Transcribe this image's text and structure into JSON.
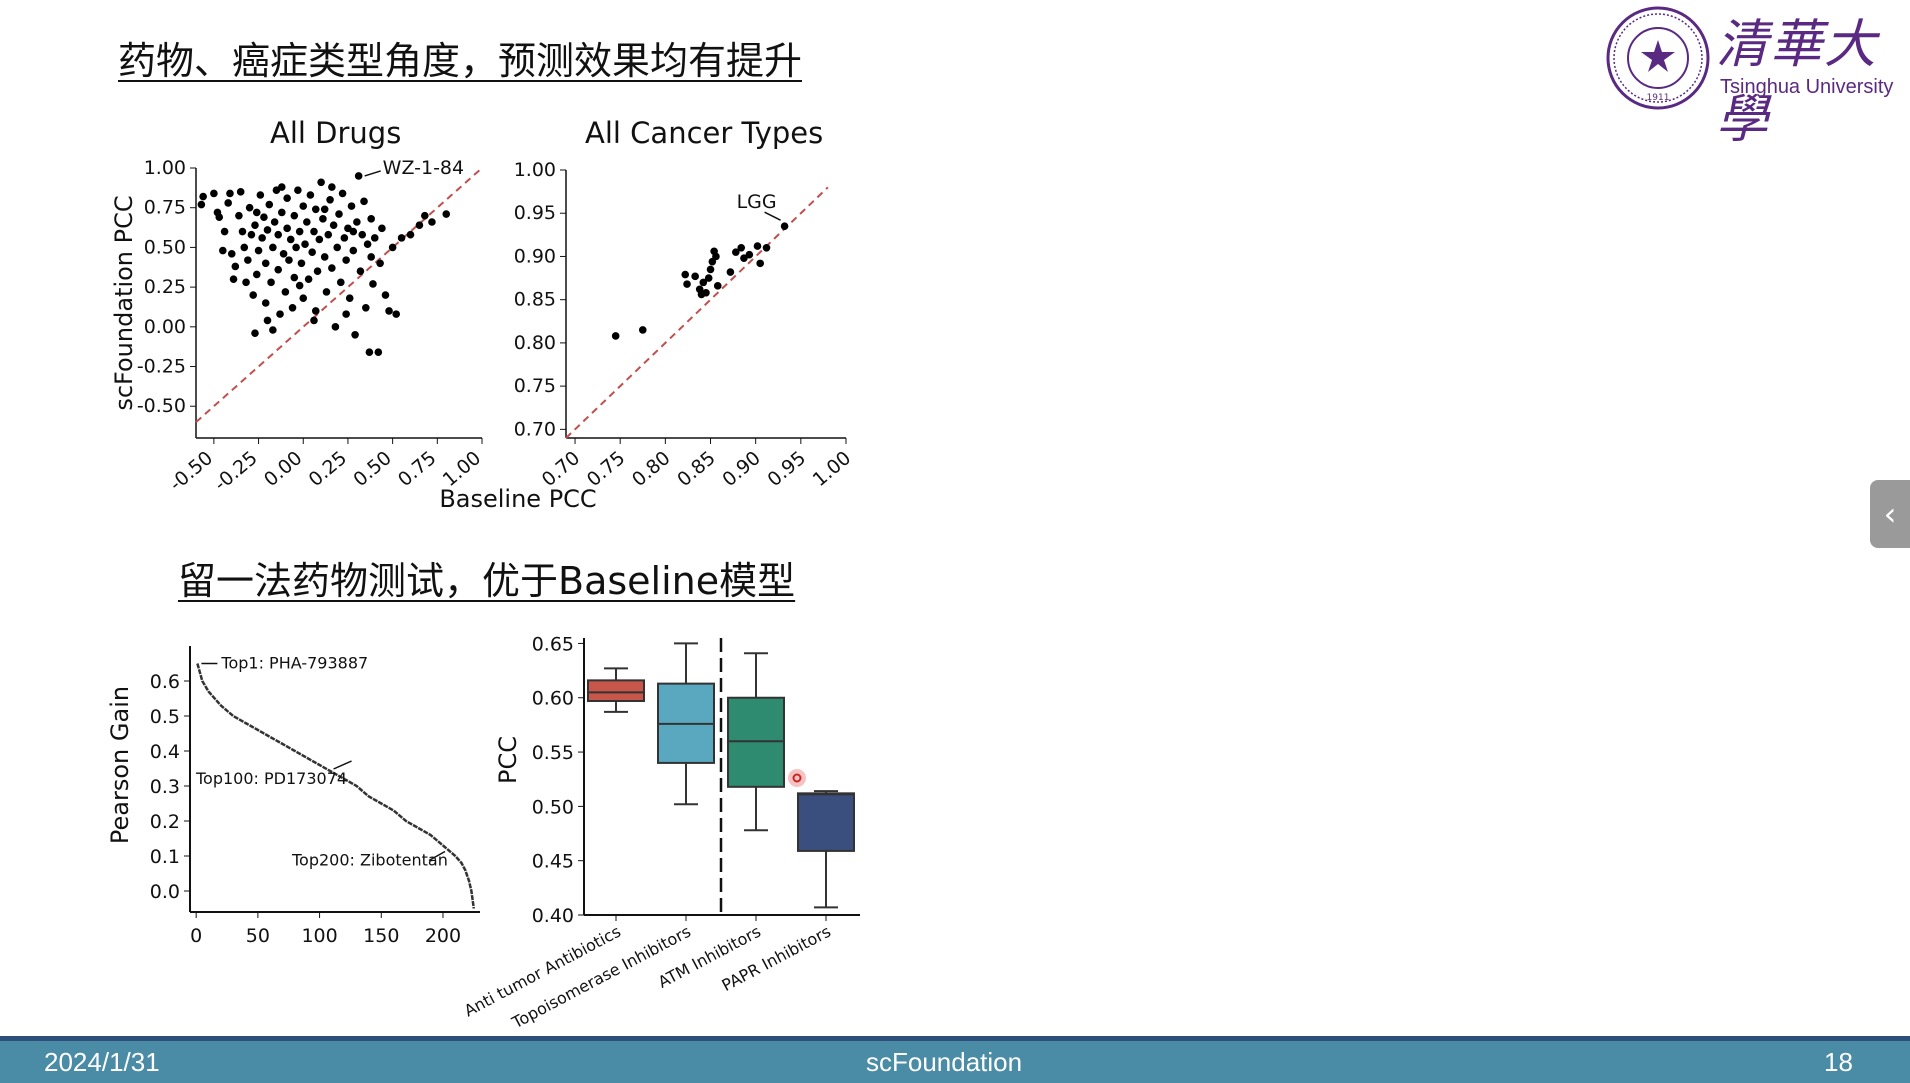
{
  "slide": {
    "heading1": "药物、癌症类型角度，预测效果均有提升",
    "heading2": "留一法药物测试，优于Baseline模型",
    "footer_date": "2024/1/31",
    "footer_title": "scFoundation",
    "page_number": "18"
  },
  "logo": {
    "chinese_name": "清華大學",
    "english_name": "Tsinghua University",
    "seal_year": "1911"
  },
  "side_tab": {
    "icon": "chevron-left-icon"
  },
  "colors": {
    "diag": "#c0504d",
    "box_anti": "#c8564a",
    "box_topo": "#5aa8c0",
    "box_atm": "#2e8b70",
    "box_papr": "#3a4f7e",
    "footer": "#4a8ba6",
    "footer_border": "#2d4f7a",
    "logo": "#5a2a82"
  },
  "chart_data": [
    {
      "type": "scatter",
      "title": "All Drugs",
      "xlabel": "Baseline PCC",
      "ylabel": "scFoundation PCC",
      "xlim": [
        -0.6,
        1.0
      ],
      "ylim": [
        -0.7,
        1.0
      ],
      "xticks": [
        "-0.50",
        "-0.25",
        "0.00",
        "0.25",
        "0.50",
        "0.75",
        "1.00"
      ],
      "yticks": [
        "1.00",
        "0.75",
        "0.50",
        "0.25",
        "0.00",
        "-0.25",
        "-0.50"
      ],
      "diagonal": true,
      "annotation": {
        "label": "WZ-1-84",
        "x": 0.31,
        "y": 0.95
      },
      "points": [
        [
          -0.56,
          0.82
        ],
        [
          -0.57,
          0.77
        ],
        [
          -0.5,
          0.84
        ],
        [
          -0.48,
          0.72
        ],
        [
          -0.47,
          0.69
        ],
        [
          -0.45,
          0.48
        ],
        [
          -0.42,
          0.78
        ],
        [
          -0.41,
          0.84
        ],
        [
          -0.4,
          0.46
        ],
        [
          -0.39,
          0.3
        ],
        [
          -0.38,
          0.38
        ],
        [
          -0.36,
          0.7
        ],
        [
          -0.35,
          0.85
        ],
        [
          -0.34,
          0.6
        ],
        [
          -0.33,
          0.5
        ],
        [
          -0.31,
          0.42
        ],
        [
          -0.3,
          0.75
        ],
        [
          -0.29,
          0.58
        ],
        [
          -0.28,
          0.2
        ],
        [
          -0.27,
          0.64
        ],
        [
          -0.27,
          -0.04
        ],
        [
          -0.26,
          0.33
        ],
        [
          -0.25,
          0.48
        ],
        [
          -0.24,
          0.83
        ],
        [
          -0.23,
          0.56
        ],
        [
          -0.22,
          0.69
        ],
        [
          -0.21,
          0.4
        ],
        [
          -0.21,
          0.15
        ],
        [
          -0.2,
          0.61
        ],
        [
          -0.19,
          0.77
        ],
        [
          -0.18,
          0.28
        ],
        [
          -0.17,
          0.5
        ],
        [
          -0.17,
          -0.02
        ],
        [
          -0.16,
          0.66
        ],
        [
          -0.15,
          0.86
        ],
        [
          -0.14,
          0.36
        ],
        [
          -0.14,
          0.58
        ],
        [
          -0.13,
          0.08
        ],
        [
          -0.12,
          0.72
        ],
        [
          -0.11,
          0.46
        ],
        [
          -0.1,
          0.22
        ],
        [
          -0.09,
          0.62
        ],
        [
          -0.09,
          0.81
        ],
        [
          -0.08,
          0.42
        ],
        [
          -0.07,
          0.55
        ],
        [
          -0.06,
          0.12
        ],
        [
          -0.05,
          0.7
        ],
        [
          -0.05,
          0.31
        ],
        [
          -0.04,
          0.5
        ],
        [
          -0.03,
          0.86
        ],
        [
          -0.02,
          0.6
        ],
        [
          -0.01,
          0.4
        ],
        [
          0.0,
          0.76
        ],
        [
          0.0,
          0.18
        ],
        [
          0.01,
          0.52
        ],
        [
          0.02,
          0.66
        ],
        [
          0.03,
          0.3
        ],
        [
          0.04,
          0.83
        ],
        [
          0.05,
          0.47
        ],
        [
          0.06,
          0.6
        ],
        [
          0.07,
          0.1
        ],
        [
          0.07,
          0.74
        ],
        [
          0.08,
          0.35
        ],
        [
          0.09,
          0.55
        ],
        [
          0.1,
          0.91
        ],
        [
          0.11,
          0.68
        ],
        [
          0.12,
          0.44
        ],
        [
          0.13,
          0.22
        ],
        [
          0.14,
          0.58
        ],
        [
          0.15,
          0.8
        ],
        [
          0.16,
          0.37
        ],
        [
          0.17,
          0.64
        ],
        [
          0.18,
          0.0
        ],
        [
          0.19,
          0.5
        ],
        [
          0.2,
          0.71
        ],
        [
          0.21,
          0.28
        ],
        [
          0.22,
          0.84
        ],
        [
          0.23,
          0.56
        ],
        [
          0.24,
          0.42
        ],
        [
          0.25,
          0.62
        ],
        [
          0.26,
          0.18
        ],
        [
          0.27,
          0.76
        ],
        [
          0.28,
          0.48
        ],
        [
          0.29,
          -0.05
        ],
        [
          0.3,
          0.66
        ],
        [
          0.31,
          0.95
        ],
        [
          0.32,
          0.35
        ],
        [
          0.33,
          0.58
        ],
        [
          0.34,
          0.79
        ],
        [
          0.35,
          0.12
        ],
        [
          0.36,
          0.52
        ],
        [
          0.37,
          -0.16
        ],
        [
          0.38,
          0.68
        ],
        [
          0.39,
          0.27
        ],
        [
          0.4,
          0.56
        ],
        [
          0.42,
          -0.16
        ],
        [
          0.43,
          0.4
        ],
        [
          0.44,
          0.62
        ],
        [
          0.46,
          0.2
        ],
        [
          0.48,
          0.1
        ],
        [
          0.5,
          0.5
        ],
        [
          0.52,
          0.08
        ],
        [
          0.55,
          0.56
        ],
        [
          0.6,
          0.58
        ],
        [
          0.65,
          0.64
        ],
        [
          0.68,
          0.7
        ],
        [
          0.72,
          0.66
        ],
        [
          0.8,
          0.71
        ],
        [
          -0.44,
          0.6
        ],
        [
          -0.32,
          0.28
        ],
        [
          -0.2,
          0.04
        ],
        [
          -0.12,
          0.88
        ],
        [
          0.06,
          0.04
        ],
        [
          0.16,
          0.88
        ],
        [
          0.24,
          0.08
        ],
        [
          0.38,
          0.44
        ],
        [
          -0.02,
          0.26
        ],
        [
          0.12,
          0.74
        ],
        [
          0.28,
          0.6
        ],
        [
          -0.26,
          0.72
        ]
      ]
    },
    {
      "type": "scatter",
      "title": "All Cancer Types",
      "xlim": [
        0.69,
        1.0
      ],
      "ylim": [
        0.69,
        1.0
      ],
      "xticks": [
        "0.70",
        "0.75",
        "0.80",
        "0.85",
        "0.90",
        "0.95",
        "1.00"
      ],
      "yticks": [
        "1.00",
        "0.95",
        "0.90",
        "0.85",
        "0.80",
        "0.75",
        "0.70"
      ],
      "diagonal": true,
      "annotation": {
        "label": "LGG",
        "x": 0.932,
        "y": 0.935
      },
      "points": [
        [
          0.745,
          0.808
        ],
        [
          0.775,
          0.815
        ],
        [
          0.822,
          0.879
        ],
        [
          0.824,
          0.868
        ],
        [
          0.833,
          0.877
        ],
        [
          0.838,
          0.862
        ],
        [
          0.84,
          0.856
        ],
        [
          0.842,
          0.87
        ],
        [
          0.845,
          0.858
        ],
        [
          0.848,
          0.875
        ],
        [
          0.85,
          0.885
        ],
        [
          0.852,
          0.894
        ],
        [
          0.854,
          0.906
        ],
        [
          0.856,
          0.9
        ],
        [
          0.858,
          0.866
        ],
        [
          0.872,
          0.882
        ],
        [
          0.878,
          0.905
        ],
        [
          0.884,
          0.91
        ],
        [
          0.887,
          0.898
        ],
        [
          0.893,
          0.902
        ],
        [
          0.902,
          0.912
        ],
        [
          0.905,
          0.892
        ],
        [
          0.912,
          0.91
        ],
        [
          0.932,
          0.935
        ]
      ]
    },
    {
      "type": "line",
      "ylabel": "Pearson Gain",
      "xlim": [
        -10,
        230
      ],
      "ylim": [
        -0.06,
        0.7
      ],
      "xticks": [
        "0",
        "50",
        "100",
        "150",
        "200"
      ],
      "yticks": [
        "0.6",
        "0.5",
        "0.4",
        "0.3",
        "0.2",
        "0.1",
        "0.0"
      ],
      "annotations": [
        {
          "label": "Top1: PHA-793887",
          "x": 1,
          "y": 0.65
        },
        {
          "label": "Top100: PD173074",
          "x": 100,
          "y": 0.36
        },
        {
          "label": "Top200: Zibotentan",
          "x": 200,
          "y": 0.13
        }
      ],
      "x": [
        1,
        5,
        10,
        20,
        30,
        40,
        50,
        60,
        70,
        80,
        90,
        100,
        110,
        120,
        130,
        140,
        150,
        160,
        170,
        180,
        190,
        200,
        210,
        215,
        218,
        221,
        223,
        225
      ],
      "y": [
        0.65,
        0.6,
        0.57,
        0.53,
        0.5,
        0.48,
        0.46,
        0.44,
        0.42,
        0.4,
        0.38,
        0.36,
        0.34,
        0.32,
        0.3,
        0.27,
        0.25,
        0.23,
        0.2,
        0.18,
        0.16,
        0.13,
        0.1,
        0.08,
        0.06,
        0.03,
        0.0,
        -0.05
      ]
    },
    {
      "type": "box",
      "ylabel": "PCC",
      "ylim": [
        0.4,
        0.66
      ],
      "yticks": [
        "0.65",
        "0.60",
        "0.55",
        "0.50",
        "0.45",
        "0.40"
      ],
      "categories": [
        "Anti tumor Antibiotics",
        "Topoisomerase Inhibitors",
        "ATM Inhibitors",
        "PAPR Inhibitors"
      ],
      "boxes": [
        {
          "min": 0.587,
          "q1": 0.597,
          "median": 0.605,
          "q3": 0.616,
          "max": 0.627
        },
        {
          "min": 0.502,
          "q1": 0.54,
          "median": 0.576,
          "q3": 0.613,
          "max": 0.65
        },
        {
          "min": 0.478,
          "q1": 0.518,
          "median": 0.56,
          "q3": 0.6,
          "max": 0.641
        },
        {
          "min": 0.407,
          "q1": 0.459,
          "median": 0.511,
          "q3": 0.512,
          "max": 0.514
        }
      ],
      "divider_after": 2
    }
  ]
}
